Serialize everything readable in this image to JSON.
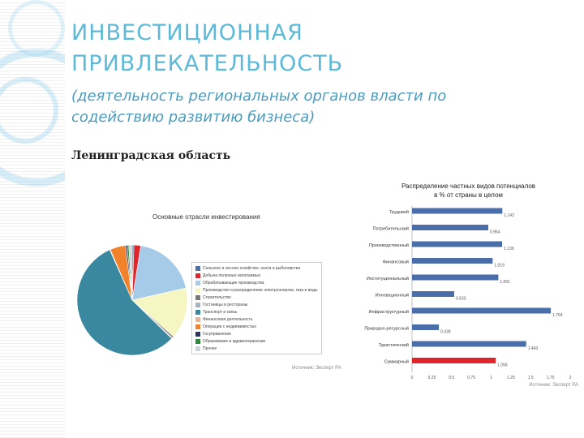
{
  "slide": {
    "title_line1": "ИНВЕСТИЦИОННАЯ",
    "title_line2": "ПРИВЛЕКАТЕЛЬНОСТЬ",
    "subtitle_line1": "(деятельность региональных органов власти по",
    "subtitle_line2": "содействию развитию бизнеса)",
    "region": "Ленинградская область"
  },
  "chart_data": [
    {
      "type": "pie",
      "title": "Основные отрасли инвестирования",
      "source": "Источник: Эксперт РА",
      "categories": [
        "Сельское и лесное хозяйство, охота и рыболовство",
        "Добыча полезных ископаемых",
        "Обрабатывающие производства",
        "Производство и распределение электроэнергии, газа и воды",
        "Строительство",
        "Гостиницы и рестораны",
        "Транспорт и связь",
        "Финансовая деятельность",
        "Операции с недвижимостью",
        "Госуправление",
        "Образование и здравоохранение",
        "Прочее"
      ],
      "values": [
        0.5,
        2,
        19,
        15,
        0.5,
        0.3,
        56,
        0.2,
        4.5,
        0.5,
        0.5,
        1
      ],
      "colors": [
        "#4f6fa0",
        "#e0262b",
        "#a6cbe8",
        "#f6f6c2",
        "#777777",
        "#a9b3bd",
        "#3a87a0",
        "#e8b29a",
        "#f0822c",
        "#2a3560",
        "#2f8a3c",
        "#cfd4d8"
      ]
    },
    {
      "type": "bar",
      "orientation": "horizontal",
      "title_line1": "Распределение частных видов потенциалов",
      "title_line2": "в % от страны в целом",
      "source": "Источник: Эксперт РА",
      "categories": [
        "Трудовой",
        "Потребительский",
        "Производственный",
        "Финансовый",
        "Институциональный",
        "Инновационный",
        "Инфраструктурный",
        "Природно-ресурсный",
        "Туристический",
        "Суммарный"
      ],
      "values": [
        1.142,
        0.964,
        1.139,
        1.019,
        1.091,
        0.533,
        1.754,
        0.339,
        1.443,
        1.058
      ],
      "value_labels": [
        "1.142",
        "0.964",
        "1.139",
        "1.019",
        "1.091",
        "0.533",
        "1.754",
        "0.339",
        "1.443",
        "1.058"
      ],
      "highlight_index": 9,
      "bar_color": "#4a6ea9",
      "highlight_color": "#e0262b",
      "xlim": [
        0,
        2
      ],
      "xticks": [
        "0",
        "0.25",
        "0.5",
        "0.75",
        "1",
        "1.25",
        "1.5",
        "1.75",
        "2"
      ]
    }
  ]
}
